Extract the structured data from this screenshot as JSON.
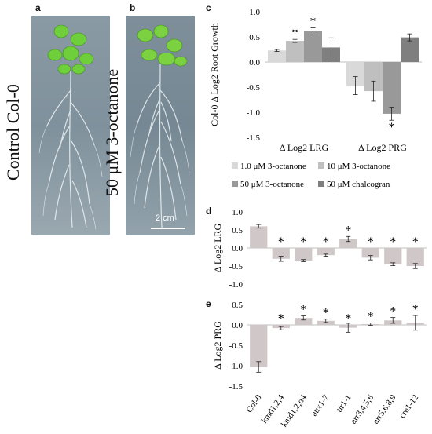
{
  "panels": {
    "a": "a",
    "b": "b",
    "c": "c",
    "d": "d",
    "e": "e"
  },
  "photo_labels": {
    "control": "Control Col-0",
    "treated": "50 μM 3-octanone",
    "scale_bar": "2 cm"
  },
  "colors": {
    "c1": "#d9d9d9",
    "c2": "#bfbfbf",
    "c3": "#999999",
    "c4": "#7f7f7f",
    "mutant": "#d0c8c8"
  },
  "chart_data": [
    {
      "id": "c",
      "type": "bar",
      "ylabel": "Col-0 Δ Log2 Root Growth",
      "ylim": [
        -1.5,
        1.0
      ],
      "yticks": [
        "1.0",
        "0.5",
        "0.0",
        "-0.5",
        "-1.0",
        "-1.5"
      ],
      "categories": [
        "Δ Log2 LRG",
        "Δ Log2 PRG"
      ],
      "series": [
        {
          "name": "1.0 μM 3-octanone",
          "values": [
            0.23,
            -0.47
          ],
          "err": [
            0.02,
            0.18
          ],
          "sig": [
            false,
            false
          ]
        },
        {
          "name": "10 μM 3-octanone",
          "values": [
            0.42,
            -0.58
          ],
          "err": [
            0.03,
            0.2
          ],
          "sig": [
            true,
            false
          ]
        },
        {
          "name": "50 μM 3-octanone",
          "values": [
            0.61,
            -1.03
          ],
          "err": [
            0.07,
            0.13
          ],
          "sig": [
            true,
            true
          ]
        },
        {
          "name": "50 μM chalcogran",
          "values": [
            0.29,
            0.49
          ],
          "err": [
            0.19,
            0.07
          ],
          "sig": [
            false,
            false
          ]
        }
      ],
      "legend": "bottom",
      "sig_marker": "*"
    },
    {
      "id": "d",
      "type": "bar",
      "ylabel": "Δ Log2 LRG",
      "ylim": [
        -1.0,
        1.0
      ],
      "yticks": [
        "1.0",
        "0.5",
        "0.0",
        "-0.5",
        "-1.0"
      ],
      "categories": [
        "Col-0",
        "kmd1,2,4",
        "kmd1,2,α4",
        "aux1-7",
        "tir1-1",
        "arr3,4,5,6",
        "arr5,6,8,9",
        "cre1-12"
      ],
      "values": [
        0.6,
        -0.3,
        -0.35,
        -0.2,
        0.25,
        -0.27,
        -0.45,
        -0.5
      ],
      "err": [
        0.05,
        0.07,
        0.03,
        0.03,
        0.07,
        0.06,
        0.04,
        0.07
      ],
      "sig": [
        false,
        true,
        true,
        true,
        true,
        true,
        true,
        true
      ],
      "sig_marker": "*"
    },
    {
      "id": "e",
      "type": "bar",
      "ylabel": "Δ Log2 PRG",
      "ylim": [
        -1.5,
        0.5
      ],
      "yticks": [
        "0.5",
        "0.0",
        "-0.5",
        "-1.0",
        "-1.5"
      ],
      "categories": [
        "Col-0",
        "kmd1,2,4",
        "kmd1,2,α4",
        "aux1-7",
        "tir1-1",
        "arr3,4,5,6",
        "arr5,6,8,9",
        "cre1-12"
      ],
      "values": [
        -1.03,
        -0.08,
        0.17,
        0.1,
        -0.07,
        0.02,
        0.11,
        0.05
      ],
      "err": [
        0.13,
        0.04,
        0.05,
        0.04,
        0.11,
        0.03,
        0.07,
        0.18
      ],
      "sig": [
        false,
        true,
        true,
        true,
        true,
        true,
        true,
        true
      ],
      "sig_marker": "*"
    }
  ]
}
